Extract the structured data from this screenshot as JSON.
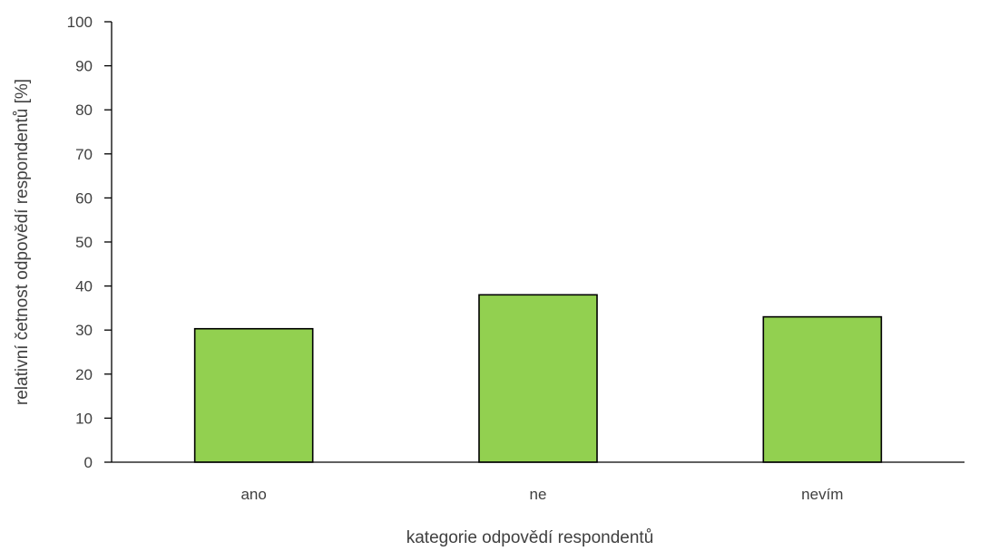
{
  "chart_data": {
    "type": "bar",
    "categories": [
      "ano",
      "ne",
      "nevím"
    ],
    "values": [
      30.3,
      38,
      33
    ],
    "xlabel": "kategorie odpovědí respondentů",
    "ylabel": "relativní četnost odpovědí respondentů [%]",
    "ylim": [
      0,
      100
    ],
    "yticks": [
      0,
      10,
      20,
      30,
      40,
      50,
      60,
      70,
      80,
      90,
      100
    ],
    "grid": false,
    "legend": "none",
    "bar_color": "#92d050",
    "bar_border_color": "#000000"
  }
}
